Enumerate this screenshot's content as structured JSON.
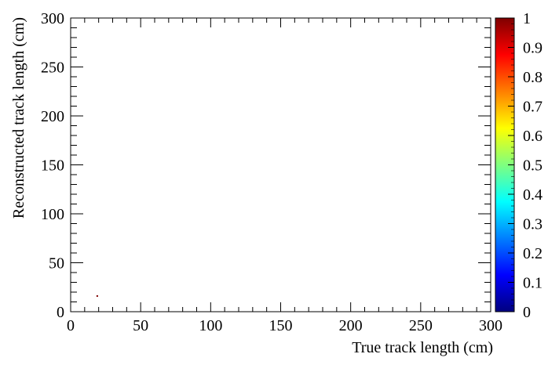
{
  "chart_data": {
    "type": "heatmap",
    "xlabel": "True track length (cm)",
    "ylabel": "Reconstructed track length (cm)",
    "xlim": [
      0,
      300
    ],
    "ylim": [
      0,
      300
    ],
    "x_ticks": [
      "0",
      "50",
      "100",
      "150",
      "200",
      "250",
      "300"
    ],
    "y_ticks": [
      "0",
      "50",
      "100",
      "150",
      "200",
      "250",
      "300"
    ],
    "colorbar": {
      "range": [
        0,
        1
      ],
      "ticks": [
        "0",
        "0.1",
        "0.2",
        "0.3",
        "0.4",
        "0.5",
        "0.6",
        "0.7",
        "0.8",
        "0.9",
        "1"
      ],
      "palette": [
        "#00007f",
        "#0000ff",
        "#007fff",
        "#00ffff",
        "#7fff7f",
        "#ffff00",
        "#ff7f00",
        "#ff0000",
        "#7f0000"
      ]
    },
    "points": [
      {
        "x": 19,
        "y": 16,
        "value": 1
      }
    ],
    "grid": false,
    "legend": "none"
  }
}
